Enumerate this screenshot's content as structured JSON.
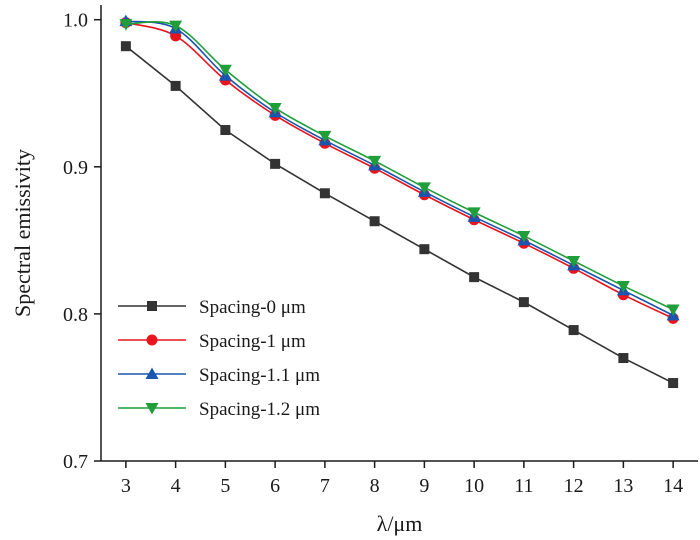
{
  "chart_data": {
    "type": "line",
    "xlabel": "λ/μm",
    "ylabel": "Spectral emissivity",
    "xlim": [
      2.5,
      14.5
    ],
    "ylim": [
      0.7,
      1.01
    ],
    "x_ticks": [
      3,
      4,
      5,
      6,
      7,
      8,
      9,
      10,
      11,
      12,
      13,
      14
    ],
    "y_ticks": [
      0.7,
      0.8,
      0.9,
      1.0
    ],
    "y_tick_labels": [
      "0.7",
      "0.8",
      "0.9",
      "1.0"
    ],
    "grid": false,
    "legend_position": "lower-left",
    "x": [
      3,
      4,
      5,
      6,
      7,
      8,
      9,
      10,
      11,
      12,
      13,
      14
    ],
    "series": [
      {
        "name": "Spacing-0 μm",
        "color": "#333333",
        "marker": "square",
        "values": [
          0.982,
          0.955,
          0.925,
          0.902,
          0.882,
          0.863,
          0.844,
          0.825,
          0.808,
          0.789,
          0.77,
          0.753
        ]
      },
      {
        "name": "Spacing-1 μm",
        "color": "#e8141e",
        "marker": "circle",
        "values": [
          0.998,
          0.989,
          0.959,
          0.935,
          0.916,
          0.899,
          0.881,
          0.864,
          0.848,
          0.831,
          0.813,
          0.797
        ]
      },
      {
        "name": "Spacing-1.1 μm",
        "color": "#1a55b0",
        "marker": "triangle-up",
        "values": [
          0.999,
          0.994,
          0.962,
          0.937,
          0.918,
          0.901,
          0.883,
          0.866,
          0.85,
          0.833,
          0.816,
          0.799
        ]
      },
      {
        "name": "Spacing-1.2 μm",
        "color": "#1f9e3a",
        "marker": "triangle-down",
        "values": [
          0.997,
          0.996,
          0.966,
          0.94,
          0.921,
          0.904,
          0.886,
          0.869,
          0.853,
          0.836,
          0.819,
          0.803
        ]
      }
    ]
  }
}
